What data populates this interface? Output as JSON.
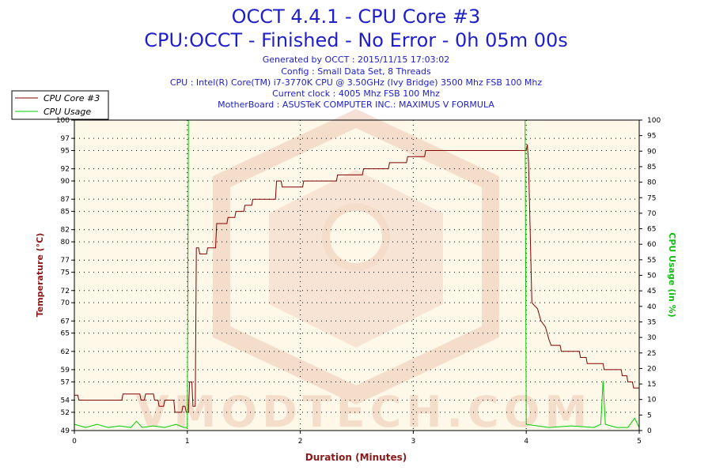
{
  "header": {
    "title": "OCCT 4.4.1 - CPU Core #3",
    "subtitle": "CPU:OCCT - Finished - No Error - 0h 05m 00s",
    "info": [
      "Generated by OCCT : 2015/11/15 17:03:02",
      "Config : Small Data Set, 8 Threads",
      "CPU : Intel(R) Core(TM) i7-3770K CPU @ 3.50GHz (Ivy Bridge) 3500 Mhz FSB 100 Mhz",
      "Current clock : 4005 Mhz FSB 100 Mhz",
      "MotherBoard : ASUSTeK COMPUTER INC.: MAXIMUS V FORMULA"
    ]
  },
  "watermark": {
    "text": "VMODTECH.COM"
  },
  "colors": {
    "temperature": "#800000",
    "usage": "#00cc00",
    "title": "#2020c8",
    "plot_bg": "#fdf8e8",
    "axis_left_title": "#8b1a1a",
    "axis_right_title": "#10c010",
    "axis_bottom_title": "#8b1a1a",
    "watermark": "#f0c8b4"
  },
  "chart_data": {
    "type": "line",
    "xlabel": "Duration (Minutes)",
    "ylabel": "Temperature (°C)",
    "y2label": "CPU Usage (in %)",
    "xlim": [
      0,
      5
    ],
    "ylim": [
      49,
      100
    ],
    "y2lim": [
      0,
      100
    ],
    "x_ticks": [
      "0",
      "1",
      "2",
      "3",
      "4",
      "5"
    ],
    "y_ticks": [
      {
        "value": 49,
        "label": "49"
      },
      {
        "value": 52,
        "label": "52"
      },
      {
        "value": 54,
        "label": "54"
      },
      {
        "value": 57,
        "label": "57"
      },
      {
        "value": 59,
        "label": "59"
      },
      {
        "value": 62,
        "label": "62"
      },
      {
        "value": 65,
        "label": "65"
      },
      {
        "value": 67,
        "label": "67"
      },
      {
        "value": 70,
        "label": "70"
      },
      {
        "value": 72,
        "label": "72"
      },
      {
        "value": 75,
        "label": "75"
      },
      {
        "value": 77,
        "label": "77"
      },
      {
        "value": 80,
        "label": "80"
      },
      {
        "value": 82,
        "label": "82"
      },
      {
        "value": 85,
        "label": "85"
      },
      {
        "value": 87,
        "label": "87"
      },
      {
        "value": 90,
        "label": "90"
      },
      {
        "value": 92,
        "label": "92"
      },
      {
        "value": 95,
        "label": "95"
      },
      {
        "value": 97,
        "label": "97"
      },
      {
        "value": 100,
        "label": "100"
      }
    ],
    "y2_ticks": [
      "0",
      "5",
      "10",
      "15",
      "20",
      "25",
      "30",
      "35",
      "40",
      "45",
      "50",
      "55",
      "60",
      "65",
      "70",
      "75",
      "80",
      "85",
      "90",
      "95",
      "100"
    ],
    "legend_placement": "top-left",
    "grid": true,
    "series": [
      {
        "name": "CPU Core #3",
        "axis": "left",
        "points": [
          [
            0.0,
            54.8
          ],
          [
            0.03,
            54.8
          ],
          [
            0.04,
            54.0
          ],
          [
            0.42,
            54.0
          ],
          [
            0.43,
            55.0
          ],
          [
            0.58,
            55.0
          ],
          [
            0.59,
            54.0
          ],
          [
            0.62,
            54.0
          ],
          [
            0.63,
            55.0
          ],
          [
            0.7,
            55.0
          ],
          [
            0.71,
            54.0
          ],
          [
            0.74,
            54.0
          ],
          [
            0.75,
            53.0
          ],
          [
            0.79,
            53.0
          ],
          [
            0.8,
            54.0
          ],
          [
            0.88,
            54.0
          ],
          [
            0.89,
            52.0
          ],
          [
            0.95,
            52.0
          ],
          [
            0.96,
            53.0
          ],
          [
            0.98,
            53.0
          ],
          [
            0.99,
            52.0
          ],
          [
            1.01,
            52.0
          ],
          [
            1.02,
            57.0
          ],
          [
            1.04,
            57.0
          ],
          [
            1.05,
            53.0
          ],
          [
            1.07,
            53.0
          ],
          [
            1.08,
            79.0
          ],
          [
            1.1,
            79.0
          ],
          [
            1.11,
            78.0
          ],
          [
            1.17,
            78.0
          ],
          [
            1.18,
            79.0
          ],
          [
            1.25,
            79.0
          ],
          [
            1.26,
            83.0
          ],
          [
            1.35,
            83.0
          ],
          [
            1.36,
            84.0
          ],
          [
            1.42,
            84.0
          ],
          [
            1.43,
            85.0
          ],
          [
            1.5,
            85.0
          ],
          [
            1.51,
            86.0
          ],
          [
            1.57,
            86.0
          ],
          [
            1.58,
            87.0
          ],
          [
            1.78,
            87.0
          ],
          [
            1.79,
            90.0
          ],
          [
            1.83,
            90.0
          ],
          [
            1.84,
            89.0
          ],
          [
            2.02,
            89.0
          ],
          [
            2.03,
            90.0
          ],
          [
            2.32,
            90.0
          ],
          [
            2.33,
            91.0
          ],
          [
            2.55,
            91.0
          ],
          [
            2.56,
            92.0
          ],
          [
            2.78,
            92.0
          ],
          [
            2.79,
            93.0
          ],
          [
            2.94,
            93.0
          ],
          [
            2.95,
            94.0
          ],
          [
            3.1,
            94.0
          ],
          [
            3.11,
            95.0
          ],
          [
            4.0,
            95.0
          ],
          [
            4.01,
            96.0
          ],
          [
            4.02,
            93.0
          ],
          [
            4.05,
            70.0
          ],
          [
            4.1,
            69.0
          ],
          [
            4.13,
            67.0
          ],
          [
            4.17,
            66.0
          ],
          [
            4.2,
            64.0
          ],
          [
            4.22,
            63.0
          ],
          [
            4.3,
            63.0
          ],
          [
            4.31,
            62.0
          ],
          [
            4.47,
            62.0
          ],
          [
            4.48,
            61.0
          ],
          [
            4.53,
            61.0
          ],
          [
            4.54,
            60.0
          ],
          [
            4.68,
            60.0
          ],
          [
            4.69,
            59.0
          ],
          [
            4.84,
            59.0
          ],
          [
            4.85,
            58.0
          ],
          [
            4.89,
            58.0
          ],
          [
            4.9,
            57.0
          ],
          [
            4.94,
            57.0
          ],
          [
            4.95,
            56.0
          ],
          [
            5.0,
            56.0
          ]
        ]
      },
      {
        "name": "CPU Usage",
        "axis": "right",
        "points": [
          [
            0.0,
            2.0
          ],
          [
            0.1,
            1.0
          ],
          [
            0.2,
            2.0
          ],
          [
            0.3,
            1.0
          ],
          [
            0.4,
            1.5
          ],
          [
            0.5,
            1.0
          ],
          [
            0.55,
            3.0
          ],
          [
            0.6,
            1.0
          ],
          [
            0.7,
            1.5
          ],
          [
            0.8,
            1.0
          ],
          [
            0.9,
            2.0
          ],
          [
            0.97,
            1.0
          ],
          [
            1.0,
            1.0
          ],
          [
            1.01,
            100.0
          ],
          [
            3.99,
            100.0
          ],
          [
            4.0,
            2.0
          ],
          [
            4.2,
            1.0
          ],
          [
            4.4,
            1.5
          ],
          [
            4.6,
            1.0
          ],
          [
            4.66,
            2.0
          ],
          [
            4.68,
            16.0
          ],
          [
            4.7,
            2.0
          ],
          [
            4.8,
            1.0
          ],
          [
            4.9,
            1.0
          ],
          [
            4.96,
            4.0
          ],
          [
            5.0,
            1.0
          ]
        ]
      }
    ]
  }
}
